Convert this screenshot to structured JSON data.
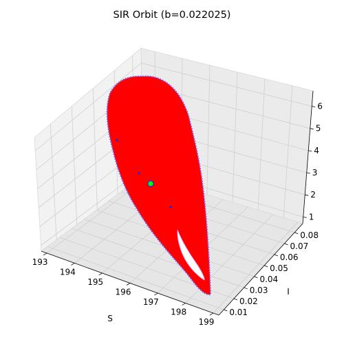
{
  "chart_data": {
    "type": "scatter",
    "title": "SIR Orbit (b=0.022025)",
    "xlabel": "S",
    "ylabel": "I",
    "zlabel": "",
    "x_ticks": [
      "193",
      "194",
      "195",
      "196",
      "197",
      "198",
      "199"
    ],
    "y_ticks": [
      "0.01",
      "0.02",
      "0.03",
      "0.04",
      "0.05",
      "0.06",
      "0.07",
      "0.08"
    ],
    "z_ticks": [
      "1",
      "2",
      "3",
      "4",
      "5",
      "6"
    ],
    "xlim": [
      192.8,
      199.2
    ],
    "ylim": [
      0.005,
      0.088
    ],
    "zlim": [
      0.7,
      6.7
    ],
    "grid": true,
    "projection": "3d",
    "series": [
      {
        "role": "orbit-fill",
        "color": "#ff0000"
      },
      {
        "role": "orbit-edge",
        "color": "#6a5cff"
      }
    ],
    "marker": {
      "color": "#00ff00",
      "edge": "#2020ff"
    }
  }
}
